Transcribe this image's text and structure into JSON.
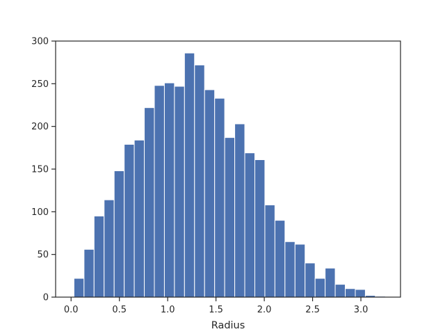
{
  "chart_data": {
    "type": "bar",
    "title": "",
    "xlabel": "Radius",
    "ylabel": "",
    "xlim": [
      -0.16,
      3.41
    ],
    "ylim": [
      0,
      300
    ],
    "xticks": [
      0.0,
      0.5,
      1.0,
      1.5,
      2.0,
      2.5,
      3.0
    ],
    "xtick_labels": [
      "0.0",
      "0.5",
      "1.0",
      "1.5",
      "2.0",
      "2.5",
      "3.0"
    ],
    "yticks": [
      0,
      50,
      100,
      150,
      200,
      250,
      300
    ],
    "ytick_labels": [
      "0",
      "50",
      "100",
      "150",
      "200",
      "250",
      "300"
    ],
    "grid": false,
    "bar_color": "#4c72b0",
    "bins": {
      "start": 0.03,
      "width": 0.104,
      "counts": [
        22,
        56,
        95,
        114,
        148,
        179,
        184,
        222,
        248,
        251,
        247,
        286,
        272,
        243,
        233,
        187,
        203,
        169,
        161,
        108,
        90,
        65,
        62,
        40,
        22,
        34,
        15,
        10,
        9,
        2,
        1
      ]
    }
  }
}
